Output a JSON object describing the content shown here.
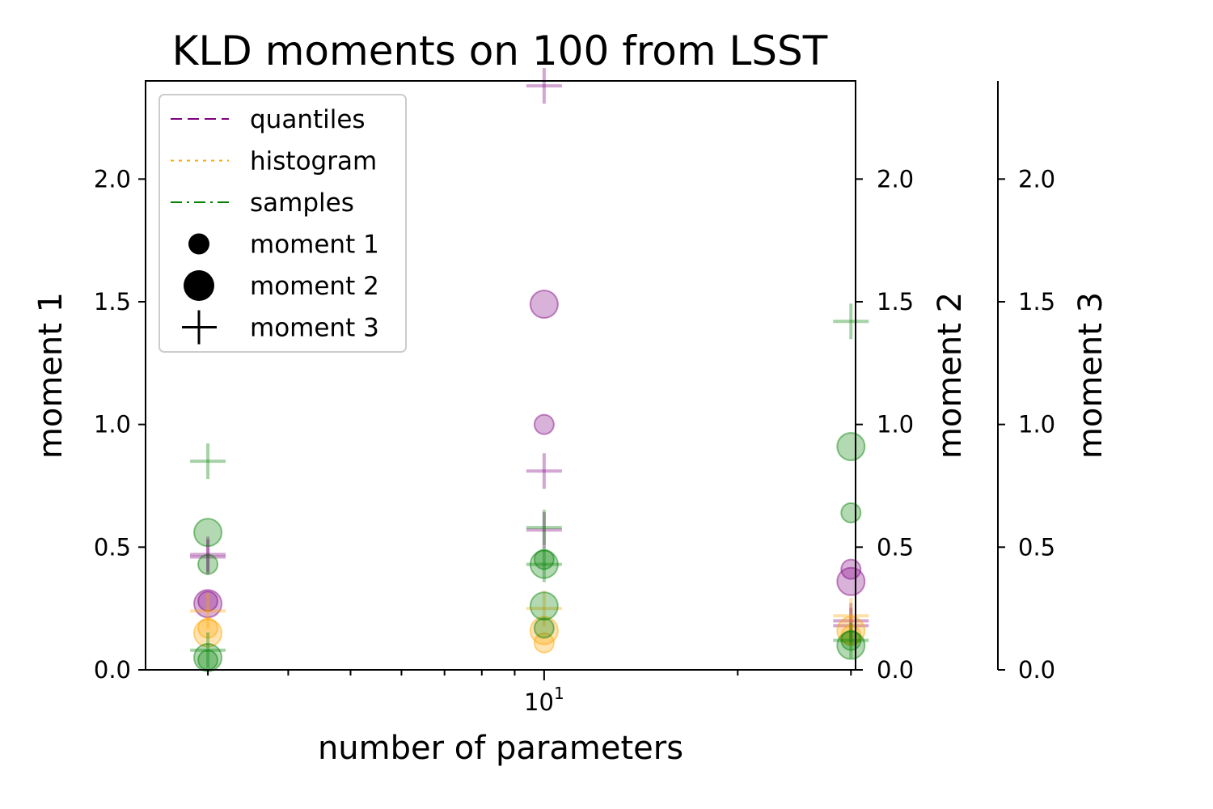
{
  "chart_data": {
    "type": "scatter",
    "title": "KLD moments on 100 from LSST",
    "xlabel": "number of parameters",
    "ylabel": "moment 1",
    "ylabel_2": "moment 2",
    "ylabel_3": "moment 3",
    "x_scale": "log",
    "xlim": [
      2.4,
      30.5
    ],
    "ylim": [
      0,
      2.4
    ],
    "grid": false,
    "legend_position": "upper-left",
    "x_tick_labels": [
      {
        "value": 10,
        "base": "10",
        "exp": "1"
      }
    ],
    "y_ticks": [
      {
        "value": 0.0,
        "label": "0.0"
      },
      {
        "value": 0.5,
        "label": "0.5"
      },
      {
        "value": 1.0,
        "label": "1.0"
      },
      {
        "value": 1.5,
        "label": "1.5"
      },
      {
        "value": 2.0,
        "label": "2.0"
      }
    ],
    "legend": [
      {
        "label": "quantiles",
        "kind": "line",
        "color": "#800080",
        "dash": "dashed"
      },
      {
        "label": "histogram",
        "kind": "line",
        "color": "#ffa500",
        "dash": "dotted"
      },
      {
        "label": "samples",
        "kind": "line",
        "color": "#008000",
        "dash": "dashdot"
      },
      {
        "label": "moment 1",
        "kind": "marker",
        "marker": "dot-small"
      },
      {
        "label": "moment 2",
        "kind": "marker",
        "marker": "dot-large"
      },
      {
        "label": "moment 3",
        "kind": "marker",
        "marker": "plus"
      }
    ],
    "series": [
      {
        "name": "quantiles",
        "color": "#800080",
        "points": [
          {
            "x": 3,
            "m1": 0.28,
            "m2": 0.27,
            "m3": [
              0.47,
              0.46
            ]
          },
          {
            "x": 10,
            "m1": 1.0,
            "m2": 1.49,
            "m3": [
              0.81,
              2.38,
              0.57
            ]
          },
          {
            "x": 30,
            "m1": 0.41,
            "m2": 0.36,
            "m3": [
              0.2,
              0.18
            ]
          }
        ]
      },
      {
        "name": "histogram",
        "color": "#ffa500",
        "points": [
          {
            "x": 3,
            "m1": 0.17,
            "m2": 0.15,
            "m3": [
              0.24
            ]
          },
          {
            "x": 10,
            "m1": 0.11,
            "m2": 0.16,
            "m3": [
              0.25
            ]
          },
          {
            "x": 30,
            "m1": 0.14,
            "m2": 0.16,
            "m3": [
              0.22
            ]
          }
        ]
      },
      {
        "name": "samples",
        "color": "#008000",
        "points": [
          {
            "x": 3,
            "m1": 0.43,
            "m2": 0.56,
            "m3": [
              0.85
            ]
          },
          {
            "x": 3,
            "m1": 0.04,
            "m2": 0.05,
            "m3": [
              0.08
            ]
          },
          {
            "x": 10,
            "m1": 0.45,
            "m2": 0.43,
            "m3": [
              0.43
            ]
          },
          {
            "x": 10,
            "m1": 0.17,
            "m2": 0.26,
            "m3": [
              0.58
            ]
          },
          {
            "x": 30,
            "m1": 0.64,
            "m2": 0.91,
            "m3": [
              1.42
            ]
          },
          {
            "x": 30,
            "m1": 0.12,
            "m2": 0.1,
            "m3": [
              0.12
            ]
          }
        ]
      }
    ]
  }
}
